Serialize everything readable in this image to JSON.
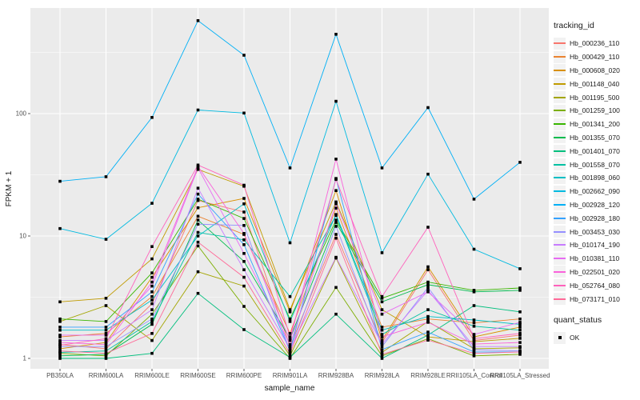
{
  "chart_data": {
    "type": "line",
    "title": "",
    "xlabel": "sample_name",
    "ylabel": "FPKM + 1",
    "y_scale": "log10",
    "y_ticks": [
      1,
      10,
      100
    ],
    "ylim": [
      1,
      700
    ],
    "grid": "on",
    "panel_bg": "#EBEBEB",
    "grid_color": "#FFFFFF",
    "marker": "black-square",
    "legend_title": "tracking_id",
    "legend2_title": "quant_status",
    "legend2_items": [
      "OK"
    ],
    "categories": [
      "PB350LA",
      "RRIM600LA",
      "RRIM600LE",
      "RRIM600SE",
      "RRIM600PE",
      "RRIM901LA",
      "RRIM928BA",
      "RRIM928LA",
      "RRIM928LE",
      "RRII105LA_Control",
      "RRII105LA_Stressed"
    ],
    "series": [
      {
        "name": "Hb_000236_110",
        "color": "#F8766D",
        "values": [
          1.3,
          1.2,
          2.8,
          19.5,
          15.7,
          1.25,
          10.3,
          1.35,
          5.3,
          1.4,
          1.55
        ]
      },
      {
        "name": "Hb_000429_110",
        "color": "#EA8331",
        "values": [
          1.5,
          1.6,
          3.2,
          14.5,
          10.3,
          1.6,
          16.9,
          1.8,
          2.1,
          1.95,
          2.1
        ]
      },
      {
        "name": "Hb_000608_020",
        "color": "#D89000",
        "values": [
          1.2,
          1.35,
          4.6,
          17,
          20.3,
          2.4,
          23.5,
          1.41,
          5.6,
          1.5,
          1.8
        ]
      },
      {
        "name": "Hb_001148_040",
        "color": "#C09B00",
        "values": [
          2.9,
          3.1,
          6.5,
          35,
          25.5,
          2.5,
          19,
          2.5,
          1.5,
          1.37,
          1.46
        ]
      },
      {
        "name": "Hb_001195_500",
        "color": "#A3A500",
        "values": [
          2.0,
          2.7,
          1.4,
          5.1,
          3.9,
          1.05,
          6.6,
          1.12,
          2.0,
          1.2,
          1.22
        ]
      },
      {
        "name": "Hb_001259_100",
        "color": "#7CAE00",
        "values": [
          1.1,
          1.05,
          2.3,
          8.3,
          2.66,
          1.0,
          3.8,
          1.05,
          1.45,
          1.05,
          1.08
        ]
      },
      {
        "name": "Hb_001341_200",
        "color": "#39B600",
        "values": [
          2.1,
          2.0,
          5.0,
          20,
          13.9,
          2.1,
          13.5,
          3.1,
          4.2,
          3.6,
          3.76
        ]
      },
      {
        "name": "Hb_001355_070",
        "color": "#00BB4E",
        "values": [
          1.05,
          1.08,
          1.9,
          13.5,
          6.2,
          1.45,
          12.9,
          2.9,
          4.0,
          3.5,
          3.6
        ]
      },
      {
        "name": "Hb_001401_070",
        "color": "#00BF7D",
        "values": [
          1.0,
          1.0,
          1.1,
          3.4,
          1.72,
          1.02,
          2.3,
          1.0,
          1.55,
          2.7,
          2.4
        ]
      },
      {
        "name": "Hb_001558_070",
        "color": "#00C1A3",
        "values": [
          1.12,
          1.15,
          2.0,
          10.7,
          9.3,
          3.2,
          14.7,
          1.57,
          2.5,
          1.83,
          1.7
        ]
      },
      {
        "name": "Hb_001898_060",
        "color": "#00BFC4",
        "values": [
          1.7,
          1.7,
          3.0,
          10.0,
          18.3,
          2.0,
          15.0,
          1.7,
          2.2,
          2.06,
          1.9
        ]
      },
      {
        "name": "Hb_002662_090",
        "color": "#00BAE0",
        "values": [
          11.5,
          9.4,
          18.5,
          107,
          101,
          8.8,
          126,
          7.3,
          32,
          7.8,
          5.4
        ]
      },
      {
        "name": "Hb_002928_120",
        "color": "#00B0F6",
        "values": [
          28,
          30.5,
          93,
          575,
          300,
          36,
          445,
          36,
          112,
          20,
          40
        ]
      },
      {
        "name": "Hb_002928_180",
        "color": "#35A2FF",
        "values": [
          1.8,
          1.8,
          3.5,
          22,
          8.5,
          1.15,
          29.5,
          1.18,
          1.64,
          1.13,
          1.13
        ]
      },
      {
        "name": "Hb_003453_030",
        "color": "#9590FF",
        "values": [
          1.25,
          1.25,
          2.1,
          12.5,
          12.2,
          1.15,
          12.0,
          1.25,
          3.8,
          1.18,
          1.15
        ]
      },
      {
        "name": "Hb_010174_190",
        "color": "#C77CFF",
        "values": [
          1.4,
          1.4,
          2.5,
          24.6,
          5.3,
          1.2,
          6.7,
          1.31,
          3.6,
          1.25,
          1.25
        ]
      },
      {
        "name": "Hb_010381_110",
        "color": "#E76BF3",
        "values": [
          1.55,
          1.55,
          3.9,
          36,
          7.2,
          1.3,
          18.3,
          2.3,
          3.5,
          1.57,
          1.97
        ]
      },
      {
        "name": "Hb_022501_020",
        "color": "#FA62DB",
        "values": [
          1.35,
          1.3,
          4.2,
          37,
          10.5,
          1.4,
          42.5,
          1.5,
          1.97,
          1.31,
          1.35
        ]
      },
      {
        "name": "Hb_052764_080",
        "color": "#FF62BC",
        "values": [
          1.28,
          1.45,
          8.2,
          38,
          26,
          1.5,
          29,
          3.2,
          11.8,
          1.45,
          1.6
        ]
      },
      {
        "name": "Hb_073171_010",
        "color": "#FF6A98",
        "values": [
          1.15,
          1.1,
          1.6,
          8.9,
          4.6,
          1.1,
          9.6,
          1.08,
          1.41,
          1.1,
          1.13
        ]
      }
    ]
  }
}
